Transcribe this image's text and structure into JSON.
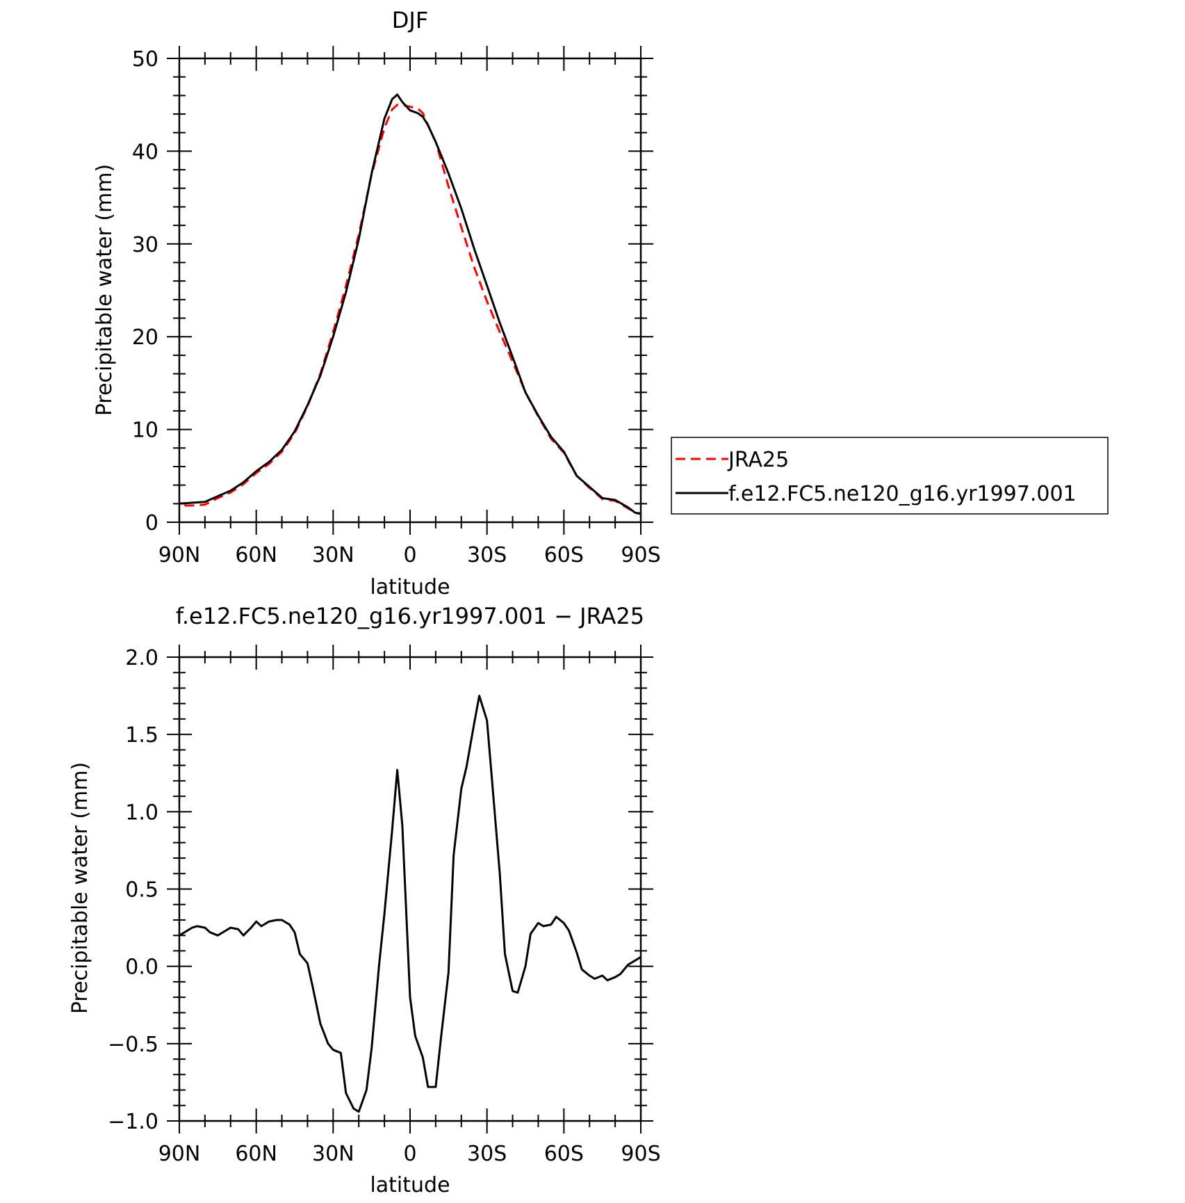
{
  "chart_data": [
    {
      "type": "line",
      "title": "DJF",
      "xlabel": "latitude",
      "ylabel": "Precipitable water (mm)",
      "xlim": [
        90,
        -90
      ],
      "ylim": [
        0,
        50
      ],
      "x_tick_values": [
        90,
        60,
        30,
        0,
        -30,
        -60,
        -90
      ],
      "x_tick_labels": [
        "90N",
        "60N",
        "30N",
        "0",
        "30S",
        "60S",
        "90S"
      ],
      "y_tick_values": [
        0,
        10,
        20,
        30,
        40,
        50
      ],
      "y_tick_labels": [
        "0",
        "10",
        "20",
        "30",
        "40",
        "50"
      ],
      "grid": false,
      "legend": "outside-right",
      "series": [
        {
          "name": "JRA25",
          "color": "#ff0000",
          "style": "dashed",
          "x": [
            88,
            85,
            80,
            75,
            70,
            65,
            60,
            55,
            50,
            45,
            40,
            35,
            30,
            25,
            20,
            15,
            10,
            7,
            5,
            3,
            0,
            -3,
            -5,
            -7,
            -10,
            -15,
            -20,
            -25,
            -30,
            -35,
            -40,
            -45,
            -50,
            -55,
            -60,
            -65,
            -70,
            -75,
            -80,
            -85,
            -88,
            -90
          ],
          "values": [
            1.8,
            1.8,
            1.9,
            2.6,
            3.2,
            4.1,
            5.3,
            6.3,
            7.6,
            9.6,
            12.5,
            16.0,
            20.5,
            25.5,
            31.0,
            37.5,
            42.5,
            44.5,
            45.0,
            45.0,
            44.8,
            44.6,
            44.1,
            42.8,
            41.0,
            36.2,
            31.8,
            27.5,
            23.8,
            20.5,
            17.3,
            14.0,
            11.4,
            9.0,
            7.5,
            5.0,
            3.7,
            2.5,
            2.3,
            1.5,
            1.0,
            1.0
          ]
        },
        {
          "name": "f.e12.FC5.ne120_g16.yr1997.001",
          "color": "#000000",
          "style": "solid",
          "x": [
            90,
            85,
            80,
            75,
            70,
            65,
            60,
            55,
            50,
            45,
            40,
            35,
            30,
            25,
            20,
            15,
            10,
            7,
            5,
            3,
            0,
            -3,
            -5,
            -7,
            -10,
            -15,
            -20,
            -25,
            -30,
            -35,
            -40,
            -45,
            -50,
            -55,
            -60,
            -65,
            -70,
            -75,
            -80,
            -85,
            -88,
            -90
          ],
          "values": [
            2.0,
            2.1,
            2.2,
            2.8,
            3.4,
            4.3,
            5.5,
            6.5,
            7.8,
            9.8,
            12.6,
            15.8,
            20.0,
            24.8,
            30.5,
            37.6,
            43.5,
            45.6,
            46.1,
            45.3,
            44.4,
            44.1,
            43.7,
            42.8,
            41.0,
            37.6,
            33.8,
            29.5,
            25.5,
            21.5,
            17.8,
            14.0,
            11.5,
            9.2,
            7.6,
            5.0,
            3.8,
            2.6,
            2.4,
            1.6,
            1.0,
            0.9
          ]
        }
      ]
    },
    {
      "type": "line",
      "title": "f.e12.FC5.ne120_g16.yr1997.001 − JRA25",
      "xlabel": "latitude",
      "ylabel": "Precipitable water (mm)",
      "xlim": [
        90,
        -90
      ],
      "ylim": [
        -1.0,
        2.0
      ],
      "x_tick_values": [
        90,
        60,
        30,
        0,
        -30,
        -60,
        -90
      ],
      "x_tick_labels": [
        "90N",
        "60N",
        "30N",
        "0",
        "30S",
        "60S",
        "90S"
      ],
      "y_tick_values": [
        -1.0,
        -0.5,
        0.0,
        0.5,
        1.0,
        1.5,
        2.0
      ],
      "y_tick_labels": [
        "−1.0",
        "−0.5",
        "0.0",
        "0.5",
        "1.0",
        "1.5",
        "2.0"
      ],
      "grid": false,
      "series": [
        {
          "color": "#000000",
          "style": "solid",
          "x": [
            90,
            88,
            85,
            83,
            80,
            78,
            75,
            72,
            70,
            67,
            65,
            62,
            60,
            58,
            55,
            52,
            50,
            47,
            45,
            43,
            40,
            38,
            35,
            32,
            30,
            27,
            25,
            22,
            20,
            17,
            15,
            12,
            10,
            7,
            5,
            3,
            0,
            -2,
            -5,
            -7,
            -10,
            -12,
            -15,
            -17,
            -20,
            -22,
            -25,
            -27,
            -30,
            -32,
            -35,
            -37,
            -40,
            -42,
            -45,
            -47,
            -50,
            -52,
            -55,
            -57,
            -60,
            -62,
            -65,
            -67,
            -70,
            -72,
            -75,
            -77,
            -80,
            -82,
            -85,
            -87,
            -90
          ],
          "values": [
            0.2,
            0.22,
            0.25,
            0.26,
            0.25,
            0.22,
            0.2,
            0.23,
            0.25,
            0.24,
            0.2,
            0.25,
            0.29,
            0.26,
            0.29,
            0.3,
            0.3,
            0.27,
            0.22,
            0.08,
            0.02,
            -0.13,
            -0.37,
            -0.5,
            -0.54,
            -0.56,
            -0.82,
            -0.92,
            -0.94,
            -0.8,
            -0.53,
            0.02,
            0.34,
            0.88,
            1.27,
            0.91,
            -0.2,
            -0.45,
            -0.59,
            -0.78,
            -0.78,
            -0.47,
            -0.04,
            0.72,
            1.15,
            1.29,
            1.57,
            1.75,
            1.59,
            1.2,
            0.6,
            0.08,
            -0.16,
            -0.17,
            0.0,
            0.21,
            0.28,
            0.26,
            0.27,
            0.32,
            0.28,
            0.23,
            0.09,
            -0.02,
            -0.06,
            -0.08,
            -0.06,
            -0.09,
            -0.07,
            -0.05,
            0.01,
            0.03,
            0.06
          ]
        }
      ]
    }
  ]
}
